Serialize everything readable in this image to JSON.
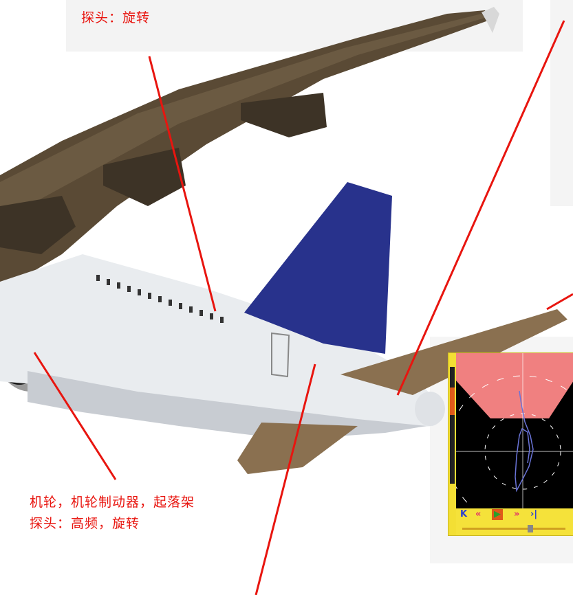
{
  "labels": {
    "top": "探头：旋转",
    "bottom_line1": "机轮，机轮制动器，起落架",
    "bottom_line2": "探头：高频，旋转"
  },
  "device": {
    "buttons": [
      "K",
      "«",
      "▶",
      "»",
      "›|"
    ]
  },
  "colors": {
    "annotation_red": "#e8150f",
    "tail_blue": "#28328c",
    "screen_gate_pink": "#f08080",
    "device_yellow": "#f5e23a"
  }
}
